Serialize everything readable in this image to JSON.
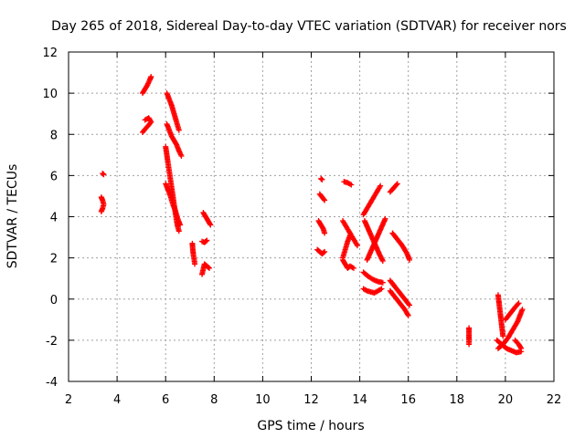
{
  "chart_data": {
    "type": "scatter",
    "title": "Day 265 of 2018, Sidereal Day-to-day VTEC variation (SDTVAR) for receiver nors",
    "xlabel": "GPS time / hours",
    "ylabel": "SDTVAR / TECUs",
    "xlim": [
      2,
      22
    ],
    "ylim": [
      -4,
      12
    ],
    "xticks": [
      2,
      4,
      6,
      8,
      10,
      12,
      14,
      16,
      18,
      20,
      22
    ],
    "yticks": [
      -4,
      -2,
      0,
      2,
      4,
      6,
      8,
      10,
      12
    ],
    "grid": true,
    "marker": "+",
    "color": "#ff0000",
    "series": [
      {
        "name": "SDTVAR",
        "tracks": [
          [
            [
              3.4,
              6.1
            ],
            [
              3.45,
              6.05
            ]
          ],
          [
            [
              3.35,
              4.95
            ],
            [
              3.4,
              4.8
            ],
            [
              3.45,
              4.6
            ],
            [
              3.4,
              4.4
            ],
            [
              3.35,
              4.25
            ]
          ],
          [
            [
              5.05,
              10.0
            ],
            [
              5.15,
              10.2
            ],
            [
              5.25,
              10.4
            ],
            [
              5.35,
              10.65
            ],
            [
              5.4,
              10.8
            ]
          ],
          [
            [
              5.05,
              8.1
            ],
            [
              5.15,
              8.25
            ],
            [
              5.3,
              8.45
            ],
            [
              5.4,
              8.6
            ],
            [
              5.3,
              8.8
            ],
            [
              5.15,
              8.7
            ]
          ],
          [
            [
              6.05,
              10.0
            ],
            [
              6.15,
              9.7
            ],
            [
              6.25,
              9.4
            ],
            [
              6.35,
              9.0
            ],
            [
              6.45,
              8.6
            ],
            [
              6.55,
              8.2
            ]
          ],
          [
            [
              6.05,
              8.5
            ],
            [
              6.15,
              8.2
            ],
            [
              6.25,
              7.9
            ],
            [
              6.35,
              7.7
            ],
            [
              6.45,
              7.5
            ],
            [
              6.55,
              7.2
            ],
            [
              6.65,
              6.95
            ]
          ],
          [
            [
              6.0,
              7.4
            ],
            [
              6.05,
              7.0
            ],
            [
              6.1,
              6.6
            ],
            [
              6.15,
              6.2
            ],
            [
              6.2,
              5.8
            ],
            [
              6.25,
              5.4
            ],
            [
              6.3,
              5.0
            ],
            [
              6.35,
              4.6
            ],
            [
              6.4,
              4.2
            ],
            [
              6.45,
              3.8
            ],
            [
              6.5,
              3.5
            ],
            [
              6.55,
              3.3
            ]
          ],
          [
            [
              6.0,
              5.6
            ],
            [
              6.1,
              5.3
            ],
            [
              6.2,
              5.0
            ],
            [
              6.3,
              4.6
            ],
            [
              6.4,
              4.3
            ],
            [
              6.5,
              3.9
            ],
            [
              6.6,
              3.6
            ]
          ],
          [
            [
              7.1,
              2.7
            ],
            [
              7.12,
              2.4
            ],
            [
              7.15,
              2.1
            ],
            [
              7.18,
              1.9
            ],
            [
              7.2,
              1.7
            ]
          ],
          [
            [
              7.55,
              4.2
            ],
            [
              7.65,
              4.0
            ],
            [
              7.75,
              3.8
            ],
            [
              7.85,
              3.6
            ]
          ],
          [
            [
              7.5,
              2.8
            ],
            [
              7.6,
              2.75
            ],
            [
              7.7,
              2.85
            ]
          ],
          [
            [
              7.5,
              1.2
            ],
            [
              7.55,
              1.45
            ],
            [
              7.6,
              1.7
            ],
            [
              7.7,
              1.6
            ],
            [
              7.8,
              1.5
            ]
          ],
          [
            [
              12.35,
              5.1
            ],
            [
              12.45,
              4.95
            ],
            [
              12.55,
              4.8
            ]
          ],
          [
            [
              12.4,
              5.85
            ],
            [
              12.45,
              5.8
            ]
          ],
          [
            [
              12.3,
              3.8
            ],
            [
              12.4,
              3.6
            ],
            [
              12.5,
              3.4
            ],
            [
              12.55,
              3.2
            ]
          ],
          [
            [
              12.25,
              2.4
            ],
            [
              12.35,
              2.3
            ],
            [
              12.45,
              2.2
            ],
            [
              12.55,
              2.3
            ]
          ],
          [
            [
              13.35,
              5.7
            ],
            [
              13.5,
              5.65
            ],
            [
              13.65,
              5.55
            ]
          ],
          [
            [
              13.3,
              3.8
            ],
            [
              13.45,
              3.5
            ],
            [
              13.6,
              3.2
            ],
            [
              13.75,
              2.9
            ],
            [
              13.9,
              2.6
            ]
          ],
          [
            [
              13.3,
              2.0
            ],
            [
              13.4,
              2.4
            ],
            [
              13.5,
              2.8
            ],
            [
              13.6,
              3.1
            ]
          ],
          [
            [
              13.3,
              1.9
            ],
            [
              13.4,
              1.7
            ],
            [
              13.5,
              1.5
            ],
            [
              13.6,
              1.6
            ],
            [
              13.75,
              1.5
            ]
          ],
          [
            [
              14.15,
              4.1
            ],
            [
              14.35,
              4.5
            ],
            [
              14.55,
              4.9
            ],
            [
              14.7,
              5.2
            ],
            [
              14.85,
              5.5
            ]
          ],
          [
            [
              14.2,
              3.8
            ],
            [
              14.35,
              3.4
            ],
            [
              14.5,
              3.0
            ],
            [
              14.65,
              2.6
            ],
            [
              14.8,
              2.2
            ],
            [
              14.95,
              1.85
            ]
          ],
          [
            [
              14.3,
              1.9
            ],
            [
              14.45,
              2.3
            ],
            [
              14.6,
              2.7
            ],
            [
              14.75,
              3.1
            ],
            [
              14.9,
              3.5
            ],
            [
              15.05,
              3.9
            ]
          ],
          [
            [
              14.15,
              1.3
            ],
            [
              14.35,
              1.1
            ],
            [
              14.55,
              0.95
            ],
            [
              14.75,
              0.85
            ],
            [
              14.95,
              0.8
            ]
          ],
          [
            [
              14.15,
              0.5
            ],
            [
              14.3,
              0.4
            ],
            [
              14.45,
              0.35
            ],
            [
              14.6,
              0.3
            ],
            [
              14.75,
              0.4
            ],
            [
              14.9,
              0.5
            ]
          ],
          [
            [
              15.25,
              5.2
            ],
            [
              15.4,
              5.4
            ],
            [
              15.55,
              5.6
            ]
          ],
          [
            [
              15.35,
              3.2
            ],
            [
              15.55,
              2.9
            ],
            [
              15.75,
              2.6
            ],
            [
              15.95,
              2.2
            ],
            [
              16.05,
              1.9
            ]
          ],
          [
            [
              15.25,
              0.4
            ],
            [
              15.45,
              0.1
            ],
            [
              15.65,
              -0.2
            ],
            [
              15.85,
              -0.5
            ],
            [
              16.0,
              -0.8
            ]
          ],
          [
            [
              15.25,
              0.9
            ],
            [
              15.45,
              0.6
            ],
            [
              15.65,
              0.3
            ],
            [
              15.85,
              0.0
            ],
            [
              16.05,
              -0.3
            ]
          ],
          [
            [
              18.5,
              -1.4
            ],
            [
              18.5,
              -1.7
            ],
            [
              18.5,
              -2.0
            ],
            [
              18.5,
              -2.2
            ]
          ],
          [
            [
              19.7,
              0.2
            ],
            [
              19.75,
              -0.3
            ],
            [
              19.8,
              -0.8
            ],
            [
              19.85,
              -1.3
            ],
            [
              19.9,
              -1.8
            ]
          ],
          [
            [
              19.65,
              -2.0
            ],
            [
              19.85,
              -2.2
            ],
            [
              20.05,
              -2.4
            ],
            [
              20.25,
              -2.5
            ],
            [
              20.45,
              -2.6
            ],
            [
              20.65,
              -2.55
            ]
          ],
          [
            [
              19.7,
              -2.4
            ],
            [
              19.9,
              -2.2
            ],
            [
              20.1,
              -1.9
            ],
            [
              20.3,
              -1.5
            ],
            [
              20.5,
              -1.1
            ],
            [
              20.7,
              -0.5
            ]
          ],
          [
            [
              20.0,
              -1.0
            ],
            [
              20.2,
              -0.7
            ],
            [
              20.4,
              -0.4
            ],
            [
              20.55,
              -0.2
            ]
          ],
          [
            [
              20.4,
              -2.0
            ],
            [
              20.55,
              -2.2
            ],
            [
              20.65,
              -2.4
            ]
          ]
        ]
      }
    ]
  }
}
